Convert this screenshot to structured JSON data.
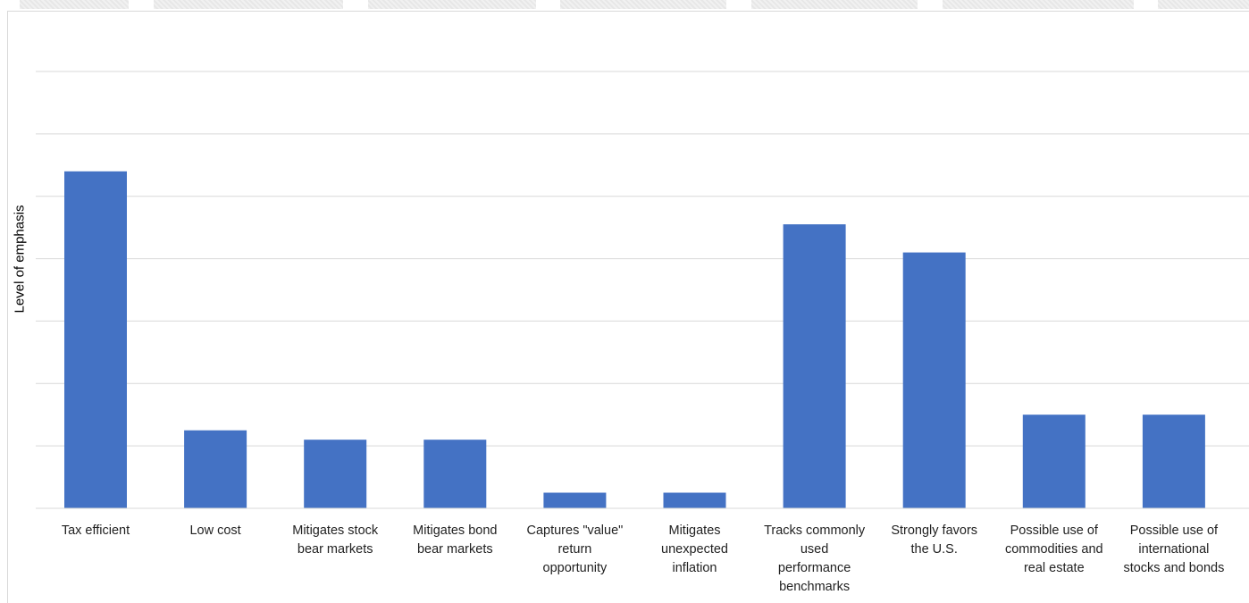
{
  "chart_data": {
    "type": "bar",
    "title": "",
    "xlabel": "",
    "ylabel": "Level of emphasis",
    "ylim": [
      0,
      7
    ],
    "grid": true,
    "y_tick_labels_shown": false,
    "categories": [
      "Tax efficient",
      "Low cost",
      "Mitigates stock bear markets",
      "Mitigates bond bear markets",
      "Captures \"value\" return opportunity",
      "Mitigates unexpected inflation",
      "Tracks commonly used performance benchmarks",
      "Strongly favors the U.S.",
      "Possible use of commodities and real estate",
      "Possible use of international stocks and bonds"
    ],
    "category_lines": [
      [
        "Tax efficient"
      ],
      [
        "Low cost"
      ],
      [
        "Mitigates stock",
        "bear markets"
      ],
      [
        "Mitigates bond",
        "bear markets"
      ],
      [
        "Captures \"value\"",
        "return",
        "opportunity"
      ],
      [
        "Mitigates",
        "unexpected",
        "inflation"
      ],
      [
        "Tracks commonly",
        "used",
        "performance",
        "benchmarks"
      ],
      [
        "Strongly favors",
        "the U.S."
      ],
      [
        "Possible use of",
        "commodities and",
        "real estate"
      ],
      [
        "Possible use of",
        "international",
        "stocks and bonds"
      ]
    ],
    "values": [
      5.4,
      1.25,
      1.1,
      1.1,
      0.25,
      0.25,
      4.55,
      4.1,
      1.5,
      1.5
    ],
    "bar_color": "#4472c4"
  }
}
